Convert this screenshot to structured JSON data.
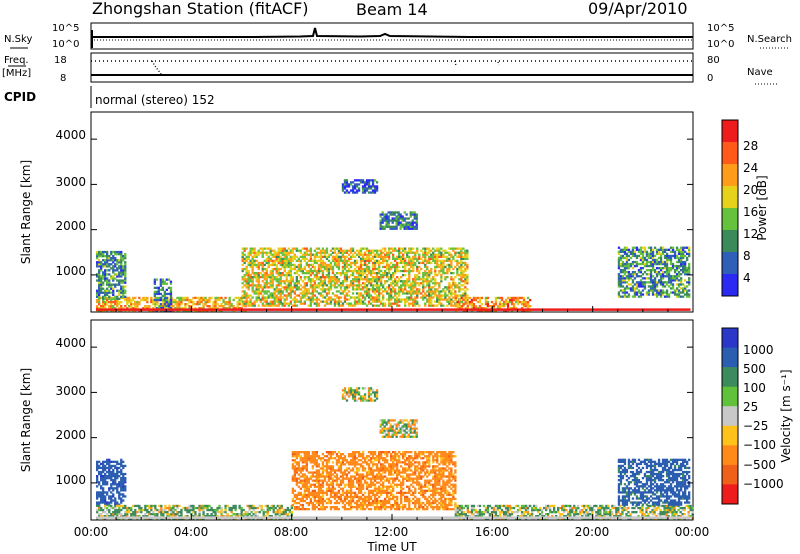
{
  "header": {
    "title": "Zhongshan Station (fitACF)",
    "beam": "Beam 14",
    "date": "09/Apr/2010"
  },
  "top_panels": {
    "nsky_label": "N.Sky",
    "nsearch_label": "N.Search",
    "freq_label": "Freq.",
    "freq_unit": "[MHz]",
    "nave_label": "Nave",
    "cpid_label": "CPID",
    "cpid_text": "normal (stereo) 152",
    "noise_ticks": [
      "10^5",
      "10^0"
    ],
    "freq_ticks": [
      "18",
      "8"
    ],
    "nave_ticks": [
      "80",
      "0"
    ]
  },
  "x_axis": {
    "title": "Time UT",
    "ticks": [
      "00:00",
      "04:00",
      "08:00",
      "12:00",
      "16:00",
      "20:00",
      "00:00"
    ]
  },
  "colorbars": {
    "power": {
      "label": "Power [dB]",
      "ticks": [
        "28",
        "24",
        "20",
        "16",
        "12",
        "8",
        "4"
      ],
      "colors": [
        "#2a2af2",
        "#2f5fb8",
        "#3a8a5a",
        "#66c13c",
        "#e6d21a",
        "#ff9d1a",
        "#ff5a1a",
        "#ee1c1c"
      ]
    },
    "velocity": {
      "label": "Velocity [m s⁻¹]",
      "ticks": [
        "1000",
        "500",
        "100",
        "25",
        "−25",
        "−100",
        "−500",
        "−1000"
      ],
      "colors": [
        "#2a37c8",
        "#2b5db0",
        "#3d8a5c",
        "#60c23a",
        "#c8c8c8",
        "#ffc21a",
        "#ff8a1a",
        "#f0601a",
        "#ee1c1c"
      ]
    }
  },
  "chart_data": [
    {
      "type": "heatmap",
      "title": "Power",
      "xlabel": "Time UT",
      "ylabel": "Slant Range [km]",
      "yticks": [
        "1000",
        "2000",
        "3000",
        "4000"
      ],
      "ylim": [
        180,
        4600
      ],
      "xlim_hours": [
        0,
        24
      ],
      "colorbar_label": "Power [dB]",
      "colorbar_ticks": [
        4,
        8,
        12,
        16,
        20,
        24,
        28
      ],
      "regions": [
        {
          "t0": 0.2,
          "t1": 6.2,
          "r0": 200,
          "r1": 500,
          "value": 20
        },
        {
          "t0": 0.2,
          "t1": 1.4,
          "r0": 450,
          "r1": 1500,
          "value": 10
        },
        {
          "t0": 2.5,
          "t1": 3.2,
          "r0": 200,
          "r1": 900,
          "value": 8
        },
        {
          "t0": 6.0,
          "t1": 15.0,
          "r0": 300,
          "r1": 1600,
          "value": 18
        },
        {
          "t0": 10.0,
          "t1": 11.4,
          "r0": 2800,
          "r1": 3100,
          "value": 6
        },
        {
          "t0": 11.5,
          "t1": 13.0,
          "r0": 2000,
          "r1": 2400,
          "value": 8
        },
        {
          "t0": 14.5,
          "t1": 17.5,
          "r0": 200,
          "r1": 500,
          "value": 22
        },
        {
          "t0": 21.0,
          "t1": 23.8,
          "r0": 500,
          "r1": 1600,
          "value": 10
        }
      ]
    },
    {
      "type": "heatmap",
      "title": "Velocity",
      "xlabel": "Time UT",
      "ylabel": "Slant Range [km]",
      "yticks": [
        "1000",
        "2000",
        "3000",
        "4000"
      ],
      "ylim": [
        180,
        4600
      ],
      "xlim_hours": [
        0,
        24
      ],
      "colorbar_label": "Velocity [m s⁻¹]",
      "colorbar_ticks": [
        1000,
        500,
        100,
        25,
        -25,
        -100,
        -500,
        -1000
      ],
      "regions": [
        {
          "t0": 0.2,
          "t1": 1.4,
          "r0": 500,
          "r1": 1500,
          "value": 800
        },
        {
          "t0": 0.2,
          "t1": 8.0,
          "r0": 200,
          "r1": 500,
          "value": 100
        },
        {
          "t0": 8.0,
          "t1": 14.5,
          "r0": 400,
          "r1": 1700,
          "value": -300
        },
        {
          "t0": 10.0,
          "t1": 11.4,
          "r0": 2800,
          "r1": 3100,
          "value": 0
        },
        {
          "t0": 11.5,
          "t1": 13.0,
          "r0": 2000,
          "r1": 2400,
          "value": 0
        },
        {
          "t0": 14.5,
          "t1": 24.0,
          "r0": 200,
          "r1": 500,
          "value": 100
        },
        {
          "t0": 21.0,
          "t1": 23.8,
          "r0": 500,
          "r1": 1500,
          "value": 700
        }
      ]
    }
  ]
}
